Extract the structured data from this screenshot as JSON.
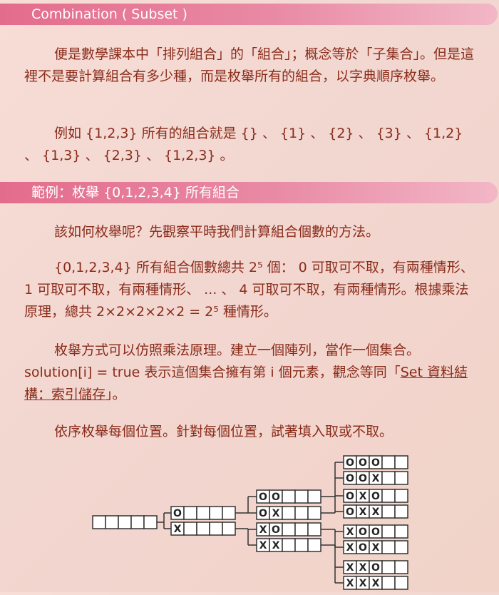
{
  "section1": {
    "heading": "Combination ( Subset )",
    "para1": "便是數學課本中「排列組合」的「組合」；概念等於「子集合」。但是這裡不是要計算組合有多少種，而是枚舉所有的組合，以字典順序枚舉。",
    "para2": "例如 {1,2,3} 所有的組合就是 {} 、 {1} 、 {2} 、 {3} 、 {1,2} 、 {1,3} 、 {2,3} 、 {1,2,3} 。"
  },
  "section2": {
    "heading": "範例：枚舉 {0,1,2,3,4} 所有組合",
    "para1": "該如何枚舉呢？先觀察平時我們計算組合個數的方法。",
    "para2": "{0,1,2,3,4} 所有組合個數總共 2⁵ 個： 0 可取可不取，有兩種情形、 1 可取可不取，有兩種情形、 ... 、 4 可取可不取，有兩種情形。根據乘法原理，總共 2×2×2×2×2 = 2⁵ 種情形。",
    "para3_text": "枚舉方式可以仿照乘法原理。建立一個陣列，當作一個集合。 solution[i] = true 表示這個集合擁有第 i 個元素，觀念等同「",
    "para3_link": "Set 資料結構：索引儲存",
    "para3_end": "」。",
    "para4": "依序枚舉每個位置。針對每個位置，試著填入取或不取。"
  },
  "diagram": {
    "take_symbol": "O",
    "skip_symbol": "X",
    "root": "",
    "level1": [
      "O",
      "X"
    ],
    "level2": [
      "OO",
      "OX",
      "XO",
      "XX"
    ],
    "level3": [
      "OOO",
      "OOX",
      "OXO",
      "OXX",
      "XOO",
      "XOX",
      "XXO",
      "XXX"
    ],
    "colors": {
      "box_border": "#333333",
      "box_fill": "#ffffff",
      "line": "#333333"
    }
  }
}
